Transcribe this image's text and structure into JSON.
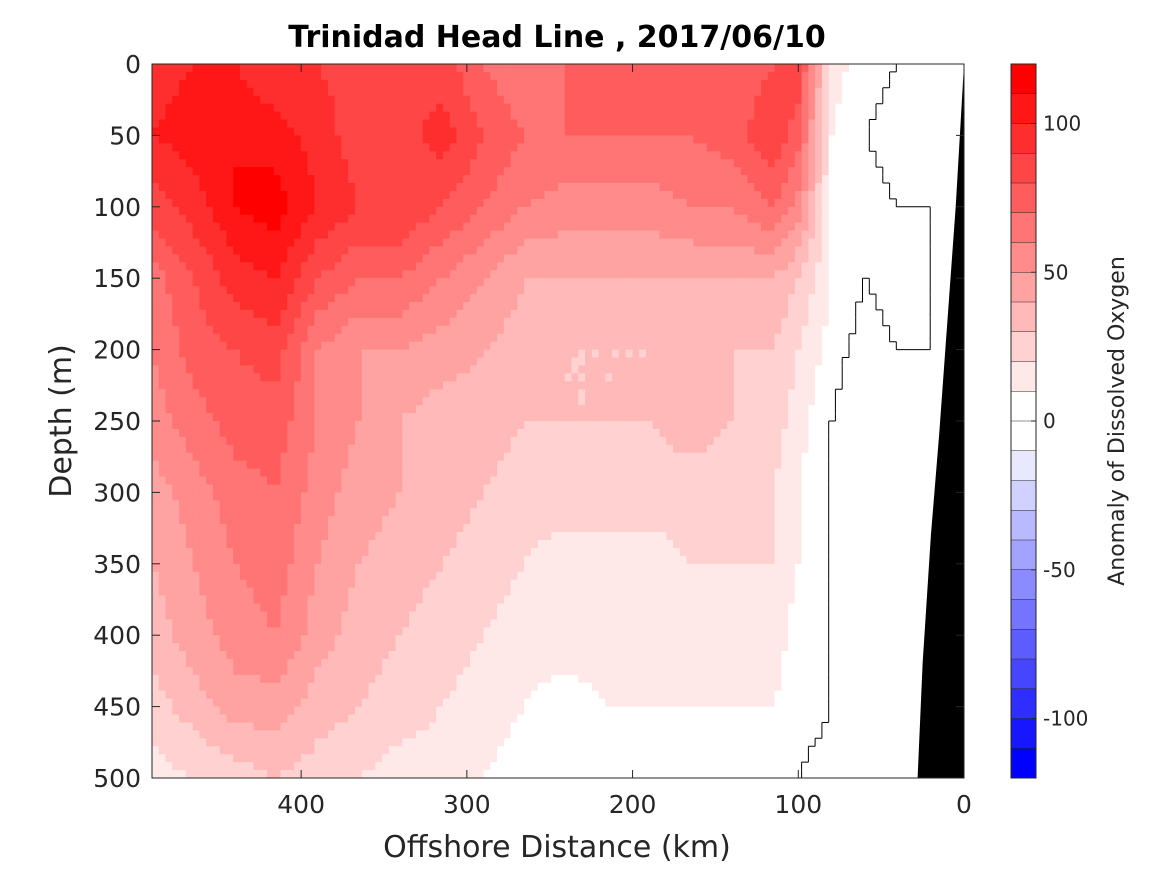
{
  "chart_data": {
    "type": "contour",
    "title": "Trinidad Head Line , 2017/06/10",
    "xlabel": "Offshore Distance (km)",
    "ylabel": "Depth (m)",
    "xlim": [
      490,
      0
    ],
    "ylim": [
      0,
      500
    ],
    "x_ticks": [
      400,
      300,
      200,
      100,
      0
    ],
    "x_tick_labels": [
      "400",
      "300",
      "200",
      "100",
      "0"
    ],
    "y_ticks": [
      0,
      50,
      100,
      150,
      200,
      250,
      300,
      350,
      400,
      450,
      500
    ],
    "y_tick_labels": [
      "0",
      "50",
      "100",
      "150",
      "200",
      "250",
      "300",
      "350",
      "400",
      "450",
      "500"
    ],
    "y_reversed": true,
    "colorbar": {
      "label": "Anomaly of Dissolved Oxygen",
      "range": [
        -120,
        120
      ],
      "level_step": 10,
      "ticks": [
        100,
        50,
        0,
        -50,
        -100
      ],
      "tick_labels": [
        "100",
        "50",
        "0",
        "-50",
        "-100"
      ],
      "colormap": "blue-white-red",
      "max_color": "#ff0000",
      "min_color": "#0000ff",
      "zero_color": "#ffffff"
    },
    "zero_contour_color": "#000000",
    "bathymetry_color": "#000000",
    "grid": false,
    "field": {
      "x_km": [
        490,
        465,
        440,
        415,
        390,
        365,
        340,
        315,
        290,
        265,
        240,
        215,
        190,
        165,
        140,
        115,
        100,
        80,
        60,
        40,
        20,
        0
      ],
      "depth_m": [
        0,
        50,
        100,
        150,
        200,
        250,
        300,
        350,
        400,
        450,
        500
      ],
      "anomaly": [
        [
          95,
          100,
          100,
          90,
          90,
          85,
          85,
          85,
          70,
          60,
          70,
          75,
          75,
          70,
          70,
          80,
          85,
          15,
          5,
          0,
          0,
          0
        ],
        [
          100,
          105,
          110,
          105,
          95,
          85,
          85,
          95,
          80,
          70,
          70,
          70,
          70,
          70,
          75,
          90,
          75,
          10,
          0,
          -5,
          0,
          0
        ],
        [
          85,
          95,
          110,
          115,
          100,
          90,
          90,
          80,
          70,
          60,
          55,
          55,
          55,
          60,
          60,
          70,
          55,
          10,
          5,
          0,
          0,
          0
        ],
        [
          65,
          80,
          95,
          100,
          80,
          70,
          70,
          60,
          50,
          40,
          40,
          40,
          40,
          40,
          40,
          40,
          30,
          10,
          0,
          5,
          0,
          0
        ],
        [
          60,
          75,
          80,
          85,
          60,
          50,
          50,
          45,
          40,
          35,
          30,
          30,
          30,
          30,
          30,
          30,
          20,
          5,
          -5,
          0,
          0,
          0
        ],
        [
          55,
          65,
          75,
          75,
          60,
          50,
          40,
          35,
          35,
          30,
          30,
          30,
          30,
          35,
          30,
          25,
          15,
          0,
          -10,
          0,
          0,
          0
        ],
        [
          45,
          55,
          65,
          70,
          55,
          45,
          40,
          35,
          30,
          25,
          25,
          25,
          25,
          25,
          25,
          20,
          10,
          0,
          -5,
          0,
          0,
          0
        ],
        [
          40,
          50,
          60,
          65,
          50,
          40,
          35,
          30,
          25,
          20,
          15,
          15,
          15,
          20,
          20,
          20,
          10,
          0,
          0,
          0,
          0,
          0
        ],
        [
          35,
          45,
          55,
          60,
          45,
          35,
          30,
          25,
          20,
          15,
          15,
          15,
          15,
          15,
          15,
          15,
          5,
          0,
          0,
          0,
          0,
          0
        ],
        [
          25,
          35,
          45,
          45,
          35,
          30,
          25,
          20,
          15,
          10,
          5,
          10,
          10,
          10,
          10,
          10,
          5,
          0,
          -10,
          0,
          0,
          0
        ],
        [
          15,
          20,
          25,
          30,
          25,
          20,
          15,
          15,
          10,
          5,
          0,
          5,
          5,
          5,
          5,
          5,
          0,
          -5,
          -10,
          0,
          0,
          0
        ]
      ]
    },
    "shelf_bottom": {
      "x_km": [
        0,
        2,
        5,
        10,
        15,
        20,
        25,
        28
      ],
      "depth_m": [
        0,
        40,
        100,
        180,
        260,
        330,
        420,
        500
      ]
    }
  }
}
